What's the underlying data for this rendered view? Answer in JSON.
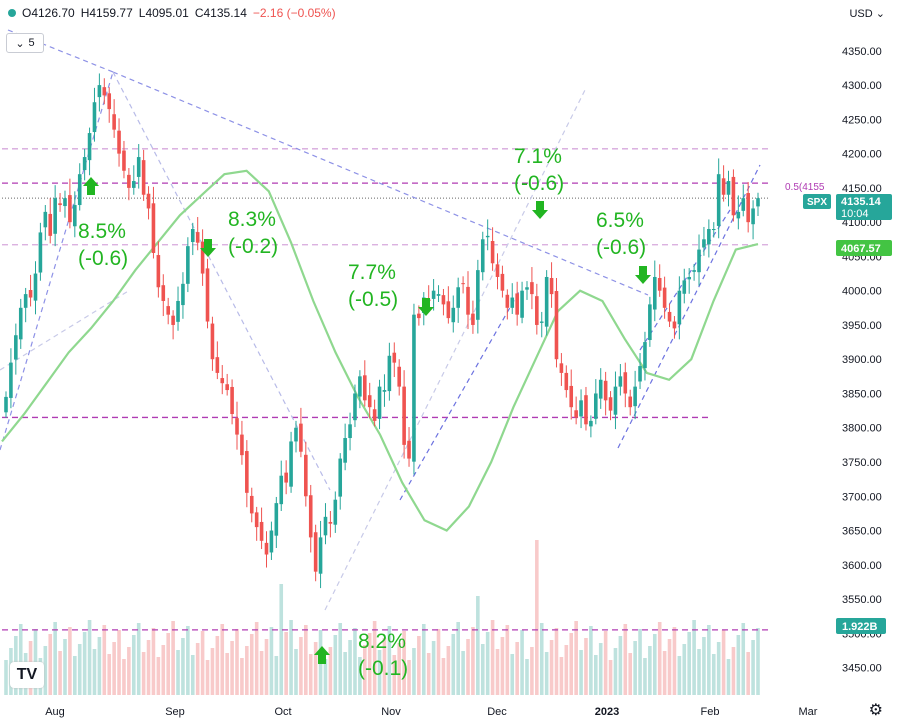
{
  "header": {
    "open": "O4126.70",
    "high": "H4159.77",
    "low": "L4095.01",
    "close": "C4135.14",
    "change": "−2.16 (−0.05%)",
    "interval": "5",
    "currency": "USD"
  },
  "badges": {
    "symbol": "SPX",
    "price": "4135.14",
    "countdown": "10:04",
    "ma_value": "4067.57",
    "volume": "1.922B",
    "fib_label": "0.5(4155"
  },
  "colors": {
    "up": "#26a69a",
    "down": "#ef5350",
    "ma": "#8fd88f",
    "level": "#b03bb3",
    "trend": "#6c72e0",
    "annotation": "#22b522"
  },
  "icons": [
    "tradingview-logo-icon",
    "settings-gear-icon",
    "chevron-down-icon"
  ],
  "chart_data": {
    "type": "candlestick",
    "symbol": "SPX",
    "ylim": [
      3410,
      4395
    ],
    "y_ticks": [
      3450,
      3500,
      3550,
      3600,
      3650,
      3700,
      3750,
      3800,
      3850,
      3900,
      3950,
      4000,
      4050,
      4100,
      4150,
      4200,
      4250,
      4300,
      4350
    ],
    "x_ticks": [
      "Aug",
      "Sep",
      "Oct",
      "Nov",
      "Dec",
      "2023",
      "Feb",
      "Mar"
    ],
    "closes": [
      3845,
      3895,
      3935,
      3975,
      3995,
      3990,
      4025,
      4085,
      4115,
      4080,
      4135,
      4125,
      4135,
      4100,
      4125,
      4170,
      4195,
      4230,
      4275,
      4300,
      4285,
      4265,
      4235,
      4200,
      4175,
      4150,
      4160,
      4195,
      4140,
      4120,
      4055,
      4005,
      3985,
      3965,
      3950,
      3985,
      4010,
      4065,
      4090,
      4070,
      4025,
      3955,
      3900,
      3880,
      3865,
      3855,
      3820,
      3790,
      3760,
      3705,
      3675,
      3655,
      3635,
      3615,
      3650,
      3690,
      3730,
      3720,
      3780,
      3800,
      3765,
      3700,
      3640,
      3590,
      3640,
      3670,
      3660,
      3695,
      3755,
      3785,
      3805,
      3850,
      3875,
      3840,
      3830,
      3810,
      3860,
      3855,
      3905,
      3895,
      3860,
      3775,
      3755,
      3965,
      3960,
      3990,
      3985,
      4000,
      3995,
      3980,
      3960,
      3975,
      4005,
      4010,
      3965,
      3950,
      4030,
      4075,
      4080,
      4040,
      4020,
      4000,
      3975,
      3990,
      3965,
      4000,
      4005,
      3995,
      3950,
      3955,
      4020,
      3995,
      3900,
      3880,
      3855,
      3830,
      3815,
      3840,
      3805,
      3810,
      3850,
      3870,
      3840,
      3825,
      3860,
      3875,
      3850,
      3830,
      3860,
      3890,
      3925,
      3980,
      4020,
      4000,
      3975,
      3955,
      3945,
      4000,
      4015,
      4020,
      4030,
      4060,
      4075,
      4090,
      4090,
      4170,
      4140,
      4160,
      4110,
      4115,
      4135,
      4100,
      4120,
      4135
    ],
    "ma_line": [
      3780,
      3820,
      3865,
      3910,
      3945,
      3985,
      4030,
      4070,
      4110,
      4140,
      4170,
      4175,
      4145,
      4070,
      3985,
      3910,
      3845,
      3790,
      3720,
      3665,
      3650,
      3685,
      3750,
      3830,
      3900,
      3970,
      4000,
      3985,
      3930,
      3880,
      3870,
      3900,
      3985,
      4060,
      4068
    ],
    "volume_note": "Volume histogram bars in lower pane",
    "levels": [
      {
        "value": 4207,
        "style": "dashed",
        "color": "light-purple"
      },
      {
        "value": 4157,
        "style": "dashed",
        "color": "purple"
      },
      {
        "value": 4135,
        "style": "dotted",
        "color": "gray"
      },
      {
        "value": 4067,
        "style": "dashed",
        "color": "light-purple"
      },
      {
        "value": 3815,
        "style": "dashed",
        "color": "purple"
      },
      {
        "value": 3505,
        "style": "dashed",
        "color": "purple"
      }
    ],
    "annotations": [
      {
        "line1": "8.5%",
        "line2": "(-0.6)",
        "arrow": "up"
      },
      {
        "line1": "8.3%",
        "line2": "(-0.2)",
        "arrow": "down"
      },
      {
        "line1": "7.7%",
        "line2": "(-0.5)",
        "arrow": "down"
      },
      {
        "line1": "7.1%",
        "line2": "(-0.6)",
        "arrow": "down"
      },
      {
        "line1": "6.5%",
        "line2": "(-0.6)",
        "arrow": "down"
      },
      {
        "line1": "8.2%",
        "line2": "(-0.1)",
        "arrow": "up"
      }
    ]
  }
}
